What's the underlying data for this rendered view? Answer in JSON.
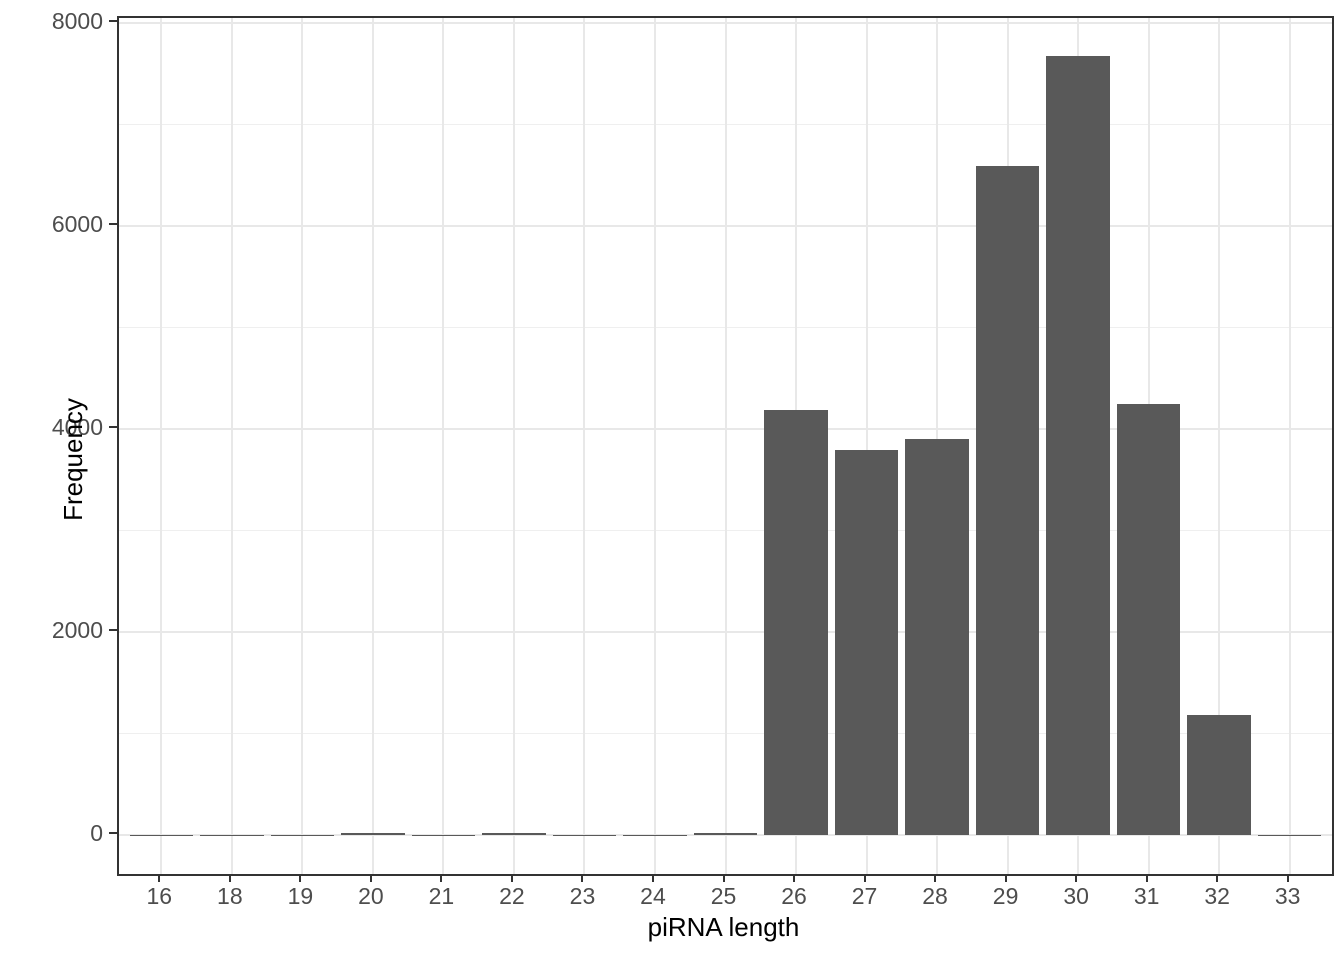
{
  "chart_data": {
    "type": "bar",
    "title": "",
    "xlabel": "piRNA length",
    "ylabel": "Frequency",
    "categories": [
      "16",
      "18",
      "19",
      "20",
      "21",
      "22",
      "23",
      "24",
      "25",
      "26",
      "27",
      "28",
      "29",
      "30",
      "31",
      "32",
      "33"
    ],
    "values": [
      2,
      2,
      3,
      20,
      2,
      18,
      2,
      2,
      20,
      4190,
      3790,
      3900,
      6590,
      7670,
      4250,
      1180,
      3
    ],
    "y_tick_labels": [
      "0",
      "2000",
      "4000",
      "6000",
      "8000"
    ],
    "y_ticks": [
      0,
      2000,
      4000,
      6000,
      8000
    ],
    "y_minor_ticks": [
      1000,
      3000,
      5000,
      7000
    ],
    "ylim": [
      -384,
      8049
    ],
    "x_expand": 0.6,
    "bar_rel_width": 0.9,
    "grid": true,
    "legend": false,
    "colors": {
      "bar": "#595959",
      "grid_major": "#e8e8e8",
      "grid_minor": "#efefef",
      "axis_text": "#4d4d4d",
      "axis_title": "#000000",
      "panel_border": "#333333",
      "background": "#ffffff"
    }
  }
}
